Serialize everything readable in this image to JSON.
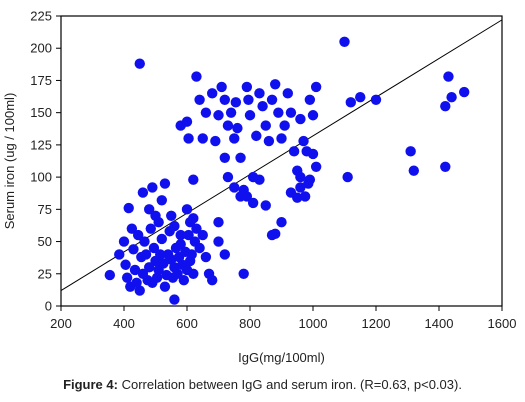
{
  "chart_data": {
    "type": "scatter",
    "xlabel": "IgG(mg/100ml)",
    "ylabel": "Serum iron (ug / 100ml)",
    "xlim": [
      200,
      1600
    ],
    "ylim": [
      0,
      225
    ],
    "xticks": [
      200,
      400,
      600,
      800,
      1000,
      1200,
      1400,
      1600
    ],
    "yticks": [
      0,
      25,
      50,
      75,
      100,
      125,
      150,
      175,
      200,
      225
    ],
    "grid": false,
    "point_color": "#1010ee",
    "trendline": {
      "x": [
        200,
        1600
      ],
      "y": [
        12,
        222
      ]
    },
    "points": [
      [
        355,
        24
      ],
      [
        385,
        40
      ],
      [
        400,
        50
      ],
      [
        405,
        32
      ],
      [
        410,
        22
      ],
      [
        415,
        76
      ],
      [
        420,
        15
      ],
      [
        425,
        60
      ],
      [
        430,
        44
      ],
      [
        435,
        28
      ],
      [
        440,
        18
      ],
      [
        445,
        55
      ],
      [
        450,
        12
      ],
      [
        455,
        38
      ],
      [
        460,
        25
      ],
      [
        465,
        50
      ],
      [
        470,
        40
      ],
      [
        475,
        20
      ],
      [
        480,
        30
      ],
      [
        485,
        60
      ],
      [
        490,
        18
      ],
      [
        495,
        45
      ],
      [
        500,
        35
      ],
      [
        505,
        22
      ],
      [
        510,
        28
      ],
      [
        515,
        40
      ],
      [
        520,
        52
      ],
      [
        525,
        33
      ],
      [
        530,
        15
      ],
      [
        535,
        24
      ],
      [
        540,
        40
      ],
      [
        545,
        58
      ],
      [
        550,
        36
      ],
      [
        555,
        22
      ],
      [
        560,
        30
      ],
      [
        565,
        45
      ],
      [
        570,
        25
      ],
      [
        575,
        38
      ],
      [
        580,
        48
      ],
      [
        585,
        32
      ],
      [
        590,
        20
      ],
      [
        595,
        42
      ],
      [
        600,
        28
      ],
      [
        605,
        55
      ],
      [
        610,
        35
      ],
      [
        615,
        40
      ],
      [
        620,
        25
      ],
      [
        625,
        50
      ],
      [
        630,
        60
      ],
      [
        640,
        45
      ],
      [
        650,
        55
      ],
      [
        660,
        38
      ],
      [
        670,
        25
      ],
      [
        680,
        20
      ],
      [
        700,
        50
      ],
      [
        720,
        40
      ],
      [
        460,
        88
      ],
      [
        480,
        75
      ],
      [
        490,
        92
      ],
      [
        500,
        70
      ],
      [
        510,
        65
      ],
      [
        520,
        82
      ],
      [
        530,
        95
      ],
      [
        550,
        70
      ],
      [
        560,
        62
      ],
      [
        580,
        55
      ],
      [
        600,
        75
      ],
      [
        610,
        65
      ],
      [
        620,
        68
      ],
      [
        450,
        188
      ],
      [
        560,
        5
      ],
      [
        580,
        140
      ],
      [
        600,
        143
      ],
      [
        605,
        130
      ],
      [
        620,
        98
      ],
      [
        630,
        178
      ],
      [
        640,
        160
      ],
      [
        650,
        130
      ],
      [
        660,
        150
      ],
      [
        680,
        165
      ],
      [
        690,
        128
      ],
      [
        700,
        148
      ],
      [
        710,
        170
      ],
      [
        720,
        160
      ],
      [
        730,
        140
      ],
      [
        740,
        150
      ],
      [
        750,
        130
      ],
      [
        755,
        158
      ],
      [
        760,
        138
      ],
      [
        770,
        115
      ],
      [
        780,
        90
      ],
      [
        790,
        170
      ],
      [
        795,
        160
      ],
      [
        800,
        148
      ],
      [
        810,
        100
      ],
      [
        820,
        132
      ],
      [
        830,
        165
      ],
      [
        840,
        155
      ],
      [
        850,
        140
      ],
      [
        860,
        128
      ],
      [
        870,
        160
      ],
      [
        880,
        172
      ],
      [
        890,
        150
      ],
      [
        900,
        130
      ],
      [
        910,
        140
      ],
      [
        920,
        165
      ],
      [
        930,
        150
      ],
      [
        940,
        120
      ],
      [
        950,
        105
      ],
      [
        960,
        145
      ],
      [
        970,
        128
      ],
      [
        980,
        120
      ],
      [
        990,
        98
      ],
      [
        1000,
        148
      ],
      [
        1010,
        170
      ],
      [
        960,
        92
      ],
      [
        975,
        85
      ],
      [
        990,
        160
      ],
      [
        1000,
        118
      ],
      [
        1010,
        108
      ],
      [
        720,
        115
      ],
      [
        730,
        100
      ],
      [
        750,
        92
      ],
      [
        770,
        85
      ],
      [
        790,
        85
      ],
      [
        810,
        80
      ],
      [
        830,
        98
      ],
      [
        850,
        78
      ],
      [
        870,
        55
      ],
      [
        900,
        65
      ],
      [
        930,
        88
      ],
      [
        960,
        100
      ],
      [
        985,
        95
      ],
      [
        780,
        25
      ],
      [
        700,
        65
      ],
      [
        880,
        56
      ],
      [
        950,
        84
      ],
      [
        1100,
        205
      ],
      [
        1110,
        100
      ],
      [
        1120,
        158
      ],
      [
        1150,
        162
      ],
      [
        1200,
        160
      ],
      [
        1310,
        120
      ],
      [
        1320,
        105
      ],
      [
        1420,
        108
      ],
      [
        1430,
        178
      ],
      [
        1420,
        155
      ],
      [
        1440,
        162
      ],
      [
        1480,
        166
      ]
    ]
  },
  "caption": {
    "label": "Figure 4:",
    "text": " Correlation between IgG and serum iron. (R=0.63, p<0.03)."
  }
}
